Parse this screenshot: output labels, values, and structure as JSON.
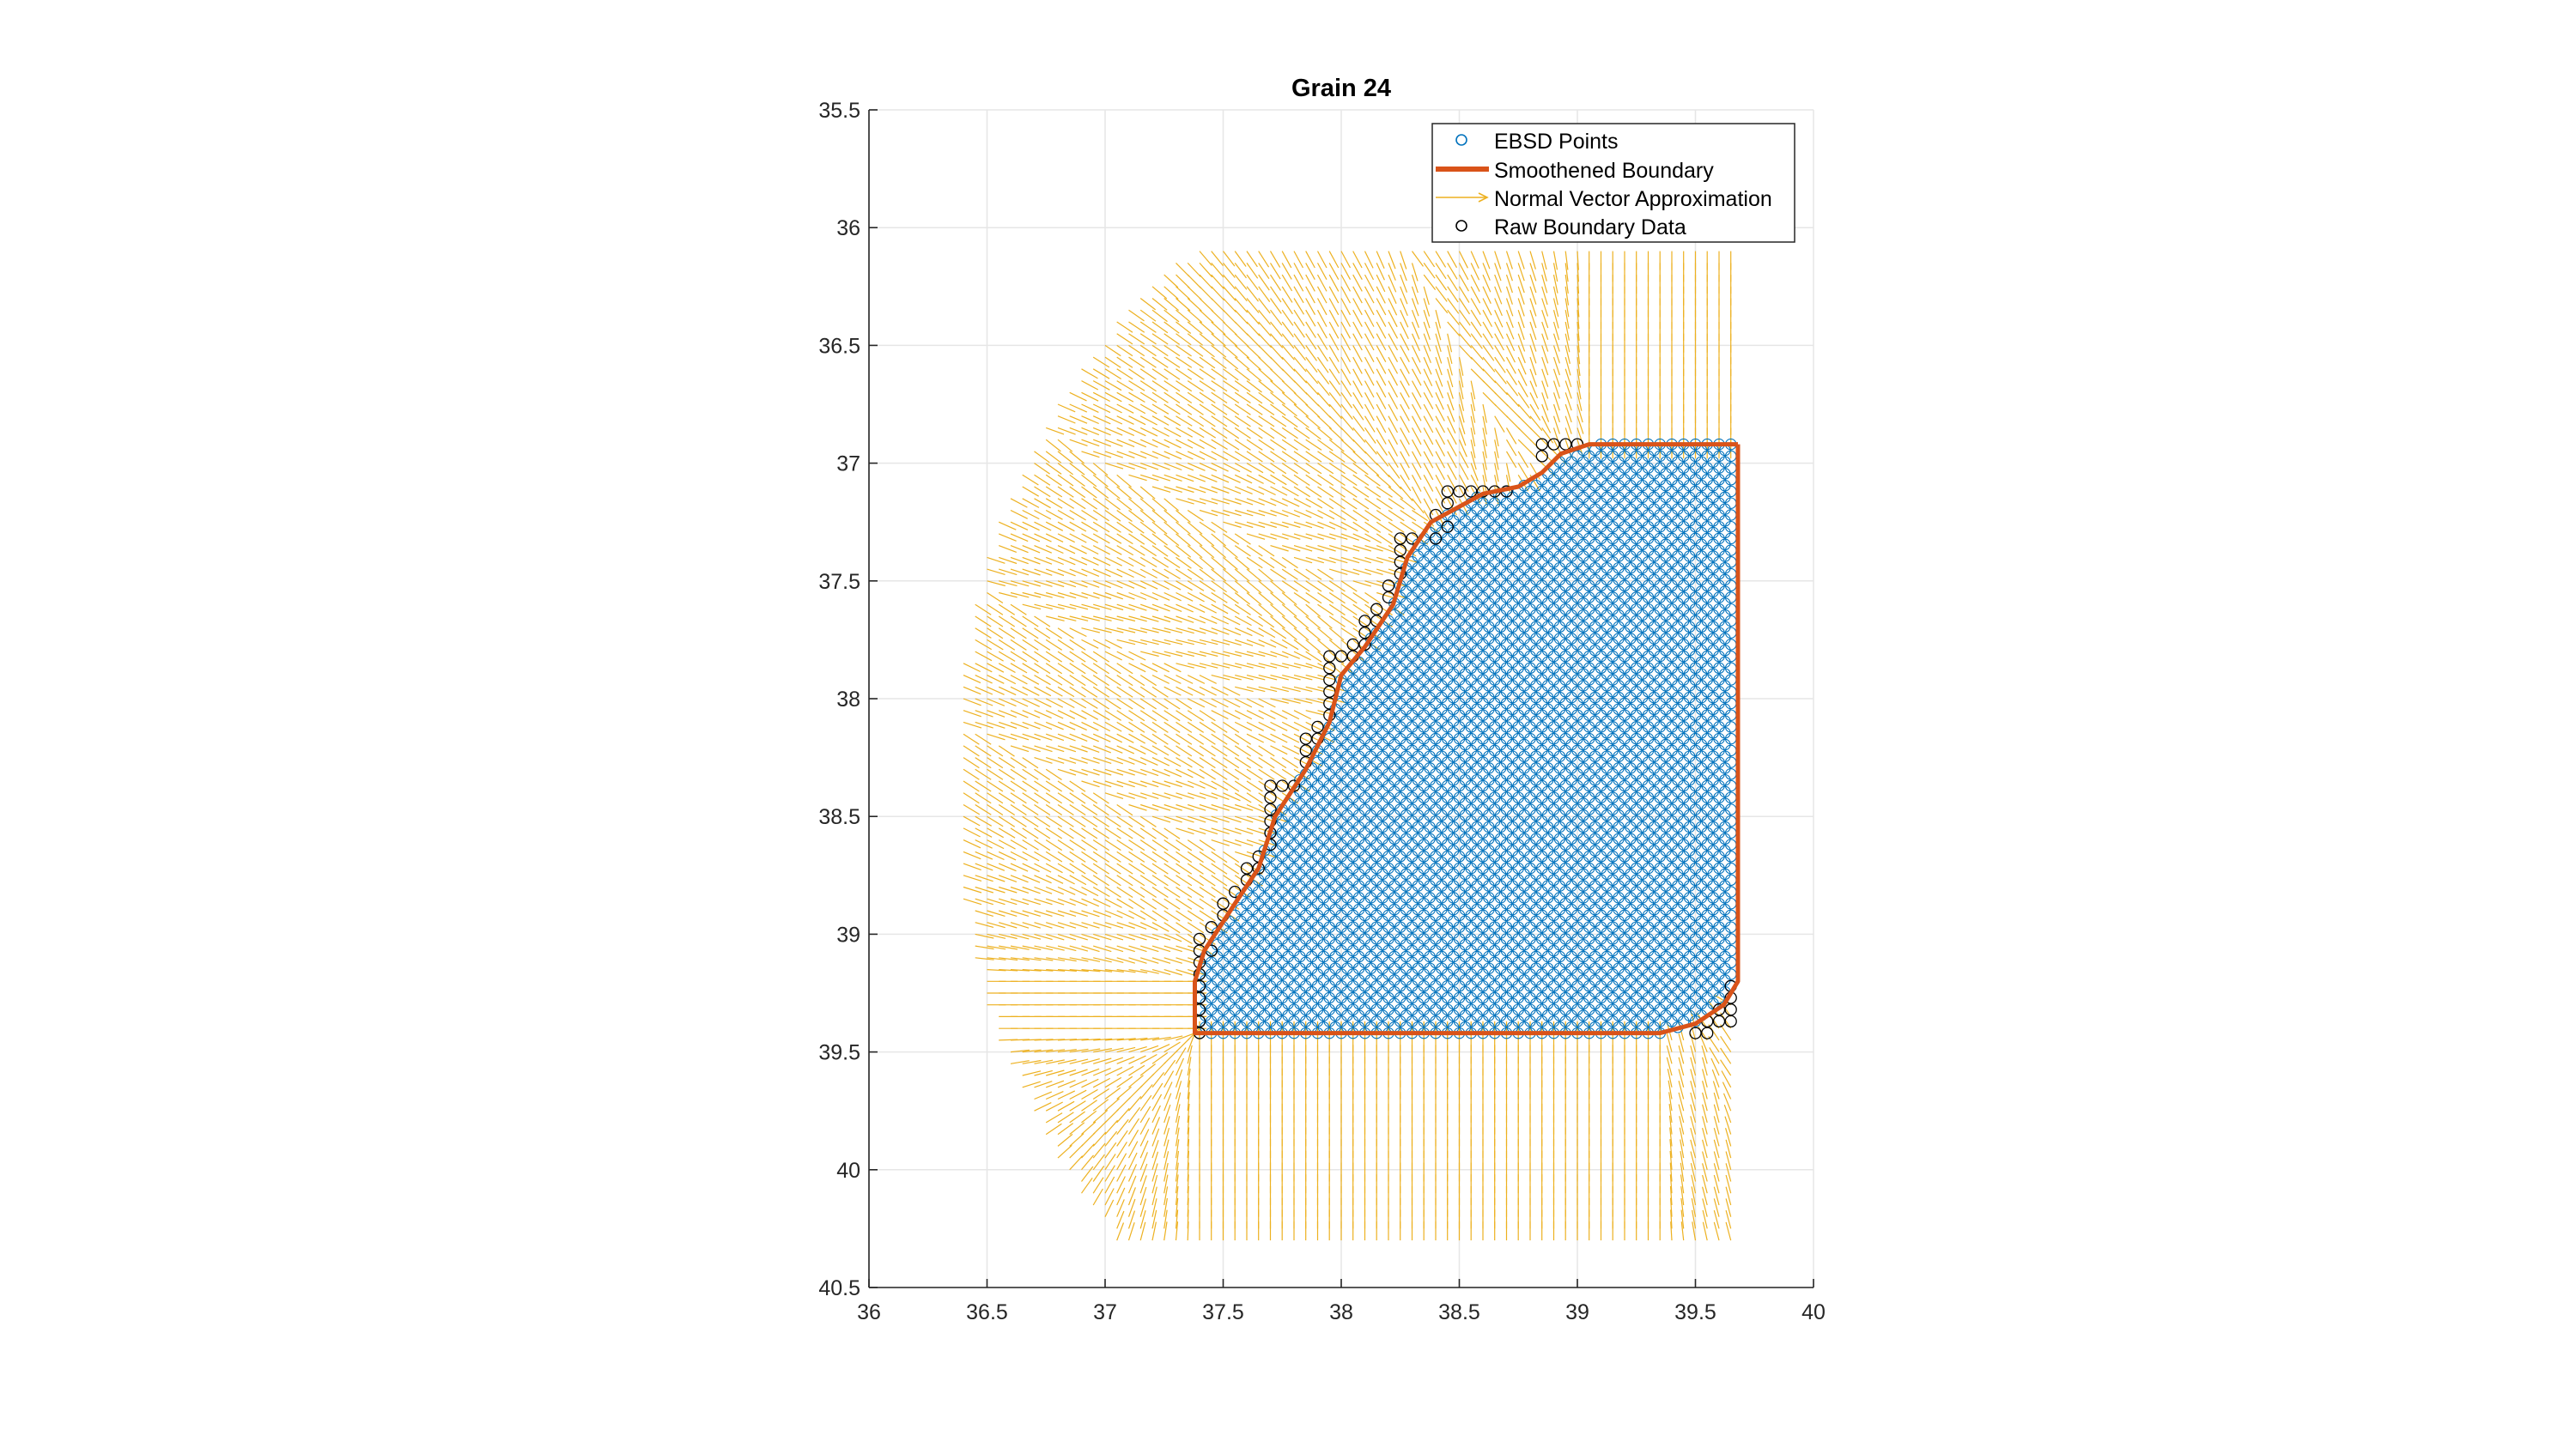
{
  "chart_data": {
    "type": "scatter",
    "title": "Grain 24",
    "xlabel": "",
    "ylabel": "",
    "xlim": [
      36,
      40
    ],
    "ylim": [
      35.5,
      40.5
    ],
    "y_axis_direction": "reversed",
    "grid": true,
    "legend_position": "top-right",
    "x_ticks": [
      "36",
      "36.5",
      "37",
      "37.5",
      "38",
      "38.5",
      "39",
      "39.5",
      "40"
    ],
    "y_ticks": [
      "35.5",
      "36",
      "36.5",
      "37",
      "37.5",
      "38",
      "38.5",
      "39",
      "39.5",
      "40",
      "40.5"
    ],
    "colors": {
      "ebsd": "#0072bd",
      "boundary": "#d95319",
      "normals": "#edb120",
      "raw": "#000000",
      "grid": "#e6e6e6",
      "axes": "#262626"
    },
    "series": [
      {
        "name": "EBSD Points",
        "kind": "grid-points",
        "x_range": [
          37.4,
          39.66
        ],
        "y_range": [
          36.92,
          39.42
        ],
        "grid_step": 0.05,
        "note": "hexagonal-ish grid filling the polygon bounded by the Smoothened Boundary"
      },
      {
        "name": "Smoothened Boundary",
        "kind": "line",
        "points": [
          [
            39.68,
            36.92
          ],
          [
            39.68,
            39.2
          ],
          [
            39.62,
            39.3
          ],
          [
            39.5,
            39.38
          ],
          [
            39.35,
            39.42
          ],
          [
            38.5,
            39.42
          ],
          [
            37.38,
            39.42
          ],
          [
            37.38,
            39.2
          ],
          [
            37.42,
            39.07
          ],
          [
            37.55,
            38.87
          ],
          [
            37.65,
            38.72
          ],
          [
            37.72,
            38.5
          ],
          [
            37.85,
            38.3
          ],
          [
            37.95,
            38.1
          ],
          [
            38.0,
            37.9
          ],
          [
            38.1,
            37.78
          ],
          [
            38.22,
            37.6
          ],
          [
            38.28,
            37.4
          ],
          [
            38.38,
            37.25
          ],
          [
            38.6,
            37.13
          ],
          [
            38.75,
            37.1
          ],
          [
            38.85,
            37.04
          ],
          [
            38.93,
            36.96
          ],
          [
            39.05,
            36.92
          ],
          [
            39.68,
            36.92
          ]
        ]
      },
      {
        "name": "Normal Vector Approximation",
        "kind": "quiver",
        "x_range": [
          36.4,
          39.68
        ],
        "y_range": [
          36.1,
          40.3
        ],
        "note": "field of unit-direction arrows pointing toward the Smoothened Boundary"
      },
      {
        "name": "Raw Boundary Data",
        "kind": "points",
        "points": [
          [
            38.85,
            36.92
          ],
          [
            38.9,
            36.92
          ],
          [
            38.95,
            36.92
          ],
          [
            39.0,
            36.92
          ],
          [
            38.85,
            36.97
          ],
          [
            38.45,
            37.12
          ],
          [
            38.5,
            37.12
          ],
          [
            38.55,
            37.12
          ],
          [
            38.6,
            37.12
          ],
          [
            38.65,
            37.12
          ],
          [
            38.7,
            37.12
          ],
          [
            38.45,
            37.17
          ],
          [
            38.4,
            37.22
          ],
          [
            38.45,
            37.27
          ],
          [
            38.4,
            37.32
          ],
          [
            38.25,
            37.32
          ],
          [
            38.3,
            37.32
          ],
          [
            38.25,
            37.37
          ],
          [
            38.25,
            37.42
          ],
          [
            38.25,
            37.47
          ],
          [
            38.2,
            37.52
          ],
          [
            38.2,
            37.57
          ],
          [
            38.15,
            37.62
          ],
          [
            38.1,
            37.67
          ],
          [
            38.15,
            37.67
          ],
          [
            38.1,
            37.72
          ],
          [
            38.05,
            37.77
          ],
          [
            38.1,
            37.77
          ],
          [
            37.95,
            37.82
          ],
          [
            38.0,
            37.82
          ],
          [
            38.05,
            37.82
          ],
          [
            37.95,
            37.87
          ],
          [
            37.95,
            37.92
          ],
          [
            37.95,
            37.97
          ],
          [
            37.95,
            38.02
          ],
          [
            37.95,
            38.07
          ],
          [
            37.9,
            38.12
          ],
          [
            37.85,
            38.17
          ],
          [
            37.9,
            38.17
          ],
          [
            37.85,
            38.22
          ],
          [
            37.85,
            38.27
          ],
          [
            37.7,
            38.37
          ],
          [
            37.75,
            38.37
          ],
          [
            37.8,
            38.37
          ],
          [
            37.7,
            38.42
          ],
          [
            37.7,
            38.47
          ],
          [
            37.7,
            38.52
          ],
          [
            37.7,
            38.57
          ],
          [
            37.7,
            38.62
          ],
          [
            37.65,
            38.67
          ],
          [
            37.6,
            38.72
          ],
          [
            37.65,
            38.72
          ],
          [
            37.6,
            38.77
          ],
          [
            37.55,
            38.82
          ],
          [
            37.5,
            38.87
          ],
          [
            37.5,
            38.92
          ],
          [
            37.45,
            38.97
          ],
          [
            37.4,
            39.02
          ],
          [
            37.4,
            39.07
          ],
          [
            37.45,
            39.07
          ],
          [
            37.4,
            39.12
          ],
          [
            37.4,
            39.17
          ],
          [
            37.4,
            39.22
          ],
          [
            37.4,
            39.27
          ],
          [
            37.4,
            39.32
          ],
          [
            37.4,
            39.37
          ],
          [
            37.4,
            39.42
          ],
          [
            39.5,
            39.42
          ],
          [
            39.55,
            39.42
          ],
          [
            39.55,
            39.37
          ],
          [
            39.6,
            39.37
          ],
          [
            39.65,
            39.37
          ],
          [
            39.6,
            39.32
          ],
          [
            39.65,
            39.32
          ],
          [
            39.65,
            39.27
          ],
          [
            39.65,
            39.22
          ]
        ]
      }
    ]
  }
}
